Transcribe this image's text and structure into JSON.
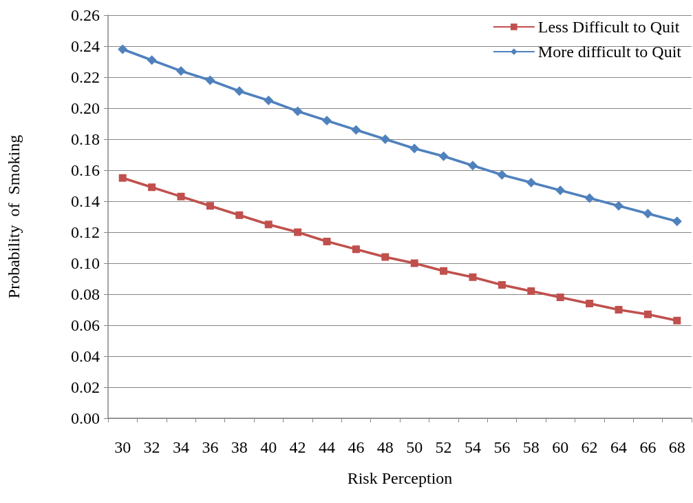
{
  "chart_data": {
    "type": "line",
    "xlabel": "Risk Perception",
    "ylabel": "Probability  of  Smoking",
    "categories": [
      "30",
      "32",
      "34",
      "36",
      "38",
      "40",
      "42",
      "44",
      "46",
      "48",
      "50",
      "52",
      "54",
      "56",
      "58",
      "60",
      "62",
      "64",
      "66",
      "68"
    ],
    "series": [
      {
        "name": "Less Difficult to Quit",
        "color": "#c0504d",
        "marker": "square",
        "values": [
          0.155,
          0.149,
          0.143,
          0.137,
          0.131,
          0.125,
          0.12,
          0.114,
          0.109,
          0.104,
          0.1,
          0.095,
          0.091,
          0.086,
          0.082,
          0.078,
          0.074,
          0.07,
          0.067,
          0.063
        ]
      },
      {
        "name": "More difficult to Quit",
        "color": "#4f81bd",
        "marker": "diamond",
        "values": [
          0.238,
          0.231,
          0.224,
          0.218,
          0.211,
          0.205,
          0.198,
          0.192,
          0.186,
          0.18,
          0.174,
          0.169,
          0.163,
          0.157,
          0.152,
          0.147,
          0.142,
          0.137,
          0.132,
          0.127
        ]
      }
    ],
    "ylim": [
      0,
      0.26
    ],
    "yticks": [
      {
        "value": 0,
        "label": "0.00"
      },
      {
        "value": 0.02,
        "label": "0.02"
      },
      {
        "value": 0.04,
        "label": "0.04"
      },
      {
        "value": 0.06,
        "label": "0.06"
      },
      {
        "value": 0.08,
        "label": "0.08"
      },
      {
        "value": 0.1,
        "label": "0.10"
      },
      {
        "value": 0.12,
        "label": "0.12"
      },
      {
        "value": 0.14,
        "label": "0.14"
      },
      {
        "value": 0.16,
        "label": "0.16"
      },
      {
        "value": 0.18,
        "label": "0.18"
      },
      {
        "value": 0.2,
        "label": "0.20"
      },
      {
        "value": 0.22,
        "label": "0.22"
      },
      {
        "value": 0.24,
        "label": "0.24"
      },
      {
        "value": 0.26,
        "label": "0.26"
      }
    ],
    "grid": "y",
    "legend": "top right",
    "line_style": "solid"
  }
}
